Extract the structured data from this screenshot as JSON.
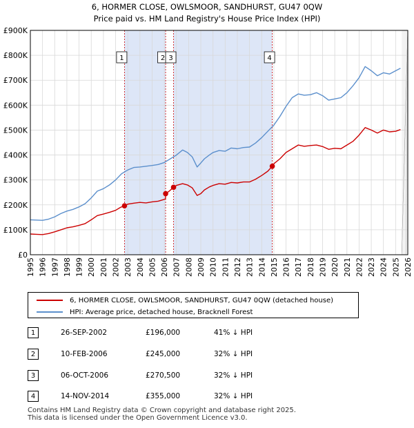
{
  "chart_data": {
    "type": "line",
    "title": "6, HORMER CLOSE, OWLSMOOR, SANDHURST, GU47 0QW",
    "subtitle": "Price paid vs. HM Land Registry's House Price Index (HPI)",
    "xlim": [
      1995,
      2026
    ],
    "ylim": [
      0,
      900000
    ],
    "y_ticks": [
      0,
      100000,
      200000,
      300000,
      400000,
      500000,
      600000,
      700000,
      800000,
      900000
    ],
    "y_tick_labels": [
      "£0",
      "£100K",
      "£200K",
      "£300K",
      "£400K",
      "£500K",
      "£600K",
      "£700K",
      "£800K",
      "£900K"
    ],
    "x_ticks": [
      1995,
      1996,
      1997,
      1998,
      1999,
      2000,
      2001,
      2002,
      2003,
      2004,
      2005,
      2006,
      2007,
      2008,
      2009,
      2010,
      2011,
      2012,
      2013,
      2014,
      2015,
      2016,
      2017,
      2018,
      2019,
      2020,
      2021,
      2022,
      2023,
      2024,
      2025,
      2026
    ],
    "x_tick_labels": [
      "1995",
      "1996",
      "1997",
      "1998",
      "1999",
      "2000",
      "2001",
      "2002",
      "2003",
      "2004",
      "2005",
      "2006",
      "2007",
      "2008",
      "2009",
      "2010",
      "2011",
      "2012",
      "2013",
      "2014",
      "2015",
      "2016",
      "2017",
      "2018",
      "2019",
      "2020",
      "2021",
      "2022",
      "2023",
      "2024",
      "2025",
      "2026"
    ],
    "grid": true,
    "legend_position": "below",
    "shaded_ranges": [
      [
        2002.73,
        2006.11
      ],
      [
        2006.76,
        2014.87
      ]
    ],
    "future_hatch_from": 2025.5,
    "series": [
      {
        "name": "6, HORMER CLOSE, OWLSMOOR, SANDHURST, GU47 0QW (detached house)",
        "color": "#cc0000",
        "x": [
          1995.0,
          1995.5,
          1996.0,
          1996.5,
          1997.0,
          1997.5,
          1998.0,
          1998.5,
          1999.0,
          1999.5,
          2000.0,
          2000.5,
          2001.0,
          2001.5,
          2002.0,
          2002.4,
          2002.73,
          2003.0,
          2003.5,
          2004.0,
          2004.5,
          2005.0,
          2005.5,
          2006.0,
          2006.1,
          2006.11,
          2006.4,
          2006.76,
          2007.0,
          2007.5,
          2007.9,
          2008.3,
          2008.7,
          2009.0,
          2009.3,
          2009.7,
          2010.0,
          2010.5,
          2011.0,
          2011.5,
          2012.0,
          2012.5,
          2013.0,
          2013.5,
          2014.0,
          2014.5,
          2014.87,
          2015.0,
          2015.5,
          2016.0,
          2016.5,
          2017.0,
          2017.5,
          2018.0,
          2018.5,
          2019.0,
          2019.5,
          2020.0,
          2020.5,
          2021.0,
          2021.5,
          2022.0,
          2022.5,
          2023.0,
          2023.5,
          2024.0,
          2024.5,
          2025.0,
          2025.4
        ],
        "y": [
          83000,
          82000,
          81000,
          85000,
          92000,
          100000,
          108000,
          112000,
          118000,
          125000,
          140000,
          157000,
          163000,
          170000,
          178000,
          190000,
          196000,
          203000,
          207000,
          210000,
          208000,
          212000,
          215000,
          222000,
          225000,
          245000,
          255000,
          270500,
          278000,
          285000,
          280000,
          268000,
          238000,
          245000,
          260000,
          272000,
          278000,
          285000,
          283000,
          290000,
          288000,
          292000,
          292000,
          303000,
          318000,
          335000,
          355000,
          365000,
          385000,
          410000,
          425000,
          440000,
          435000,
          438000,
          440000,
          434000,
          423000,
          427000,
          425000,
          440000,
          455000,
          480000,
          510000,
          500000,
          488000,
          500000,
          493000,
          495000,
          502000
        ]
      },
      {
        "name": "HPI: Average price, detached house, Bracknell Forest",
        "color": "#5b8fcc",
        "x": [
          1995.0,
          1995.5,
          1996.0,
          1996.5,
          1997.0,
          1997.5,
          1998.0,
          1998.5,
          1999.0,
          1999.5,
          2000.0,
          2000.5,
          2001.0,
          2001.5,
          2002.0,
          2002.5,
          2003.0,
          2003.5,
          2004.0,
          2004.5,
          2005.0,
          2005.5,
          2006.0,
          2006.5,
          2007.0,
          2007.5,
          2007.9,
          2008.3,
          2008.7,
          2009.0,
          2009.3,
          2009.7,
          2010.0,
          2010.5,
          2011.0,
          2011.5,
          2012.0,
          2012.5,
          2013.0,
          2013.5,
          2014.0,
          2014.5,
          2015.0,
          2015.5,
          2016.0,
          2016.5,
          2017.0,
          2017.5,
          2018.0,
          2018.5,
          2019.0,
          2019.5,
          2020.0,
          2020.5,
          2021.0,
          2021.5,
          2022.0,
          2022.5,
          2023.0,
          2023.5,
          2024.0,
          2024.5,
          2025.0,
          2025.4
        ],
        "y": [
          140000,
          139000,
          138000,
          143000,
          152000,
          165000,
          175000,
          182000,
          192000,
          205000,
          228000,
          255000,
          265000,
          280000,
          300000,
          325000,
          340000,
          350000,
          352000,
          355000,
          358000,
          362000,
          370000,
          385000,
          400000,
          420000,
          410000,
          392000,
          352000,
          368000,
          385000,
          400000,
          410000,
          418000,
          415000,
          428000,
          425000,
          430000,
          432000,
          448000,
          470000,
          495000,
          520000,
          555000,
          595000,
          630000,
          645000,
          640000,
          642000,
          650000,
          638000,
          620000,
          625000,
          630000,
          650000,
          678000,
          710000,
          755000,
          738000,
          718000,
          730000,
          725000,
          738000,
          748000
        ]
      }
    ],
    "sales": [
      {
        "label": "1",
        "x": 2002.73,
        "price": 196000,
        "date": "26-SEP-2002",
        "price_text": "£196,000",
        "hpi_text": "41% ↓ HPI"
      },
      {
        "label": "2",
        "x": 2006.11,
        "price": 245000,
        "date": "10-FEB-2006",
        "price_text": "£245,000",
        "hpi_text": "32% ↓ HPI"
      },
      {
        "label": "3",
        "x": 2006.76,
        "price": 270500,
        "date": "06-OCT-2006",
        "price_text": "£270,500",
        "hpi_text": "32% ↓ HPI"
      },
      {
        "label": "4",
        "x": 2014.87,
        "price": 355000,
        "date": "14-NOV-2014",
        "price_text": "£355,000",
        "hpi_text": "32% ↓ HPI"
      }
    ]
  },
  "legend": {
    "property_label": "6, HORMER CLOSE, OWLSMOOR, SANDHURST, GU47 0QW (detached house)",
    "hpi_label": "HPI: Average price, detached house, Bracknell Forest"
  },
  "footer": {
    "line1": "Contains HM Land Registry data © Crown copyright and database right 2025.",
    "line2": "This data is licensed under the Open Government Licence v3.0."
  },
  "colors": {
    "property": "#cc0000",
    "hpi": "#5b8fcc",
    "shade": "#dde6f7",
    "grid": "#d8d8d8",
    "vline": "#cc0000"
  }
}
